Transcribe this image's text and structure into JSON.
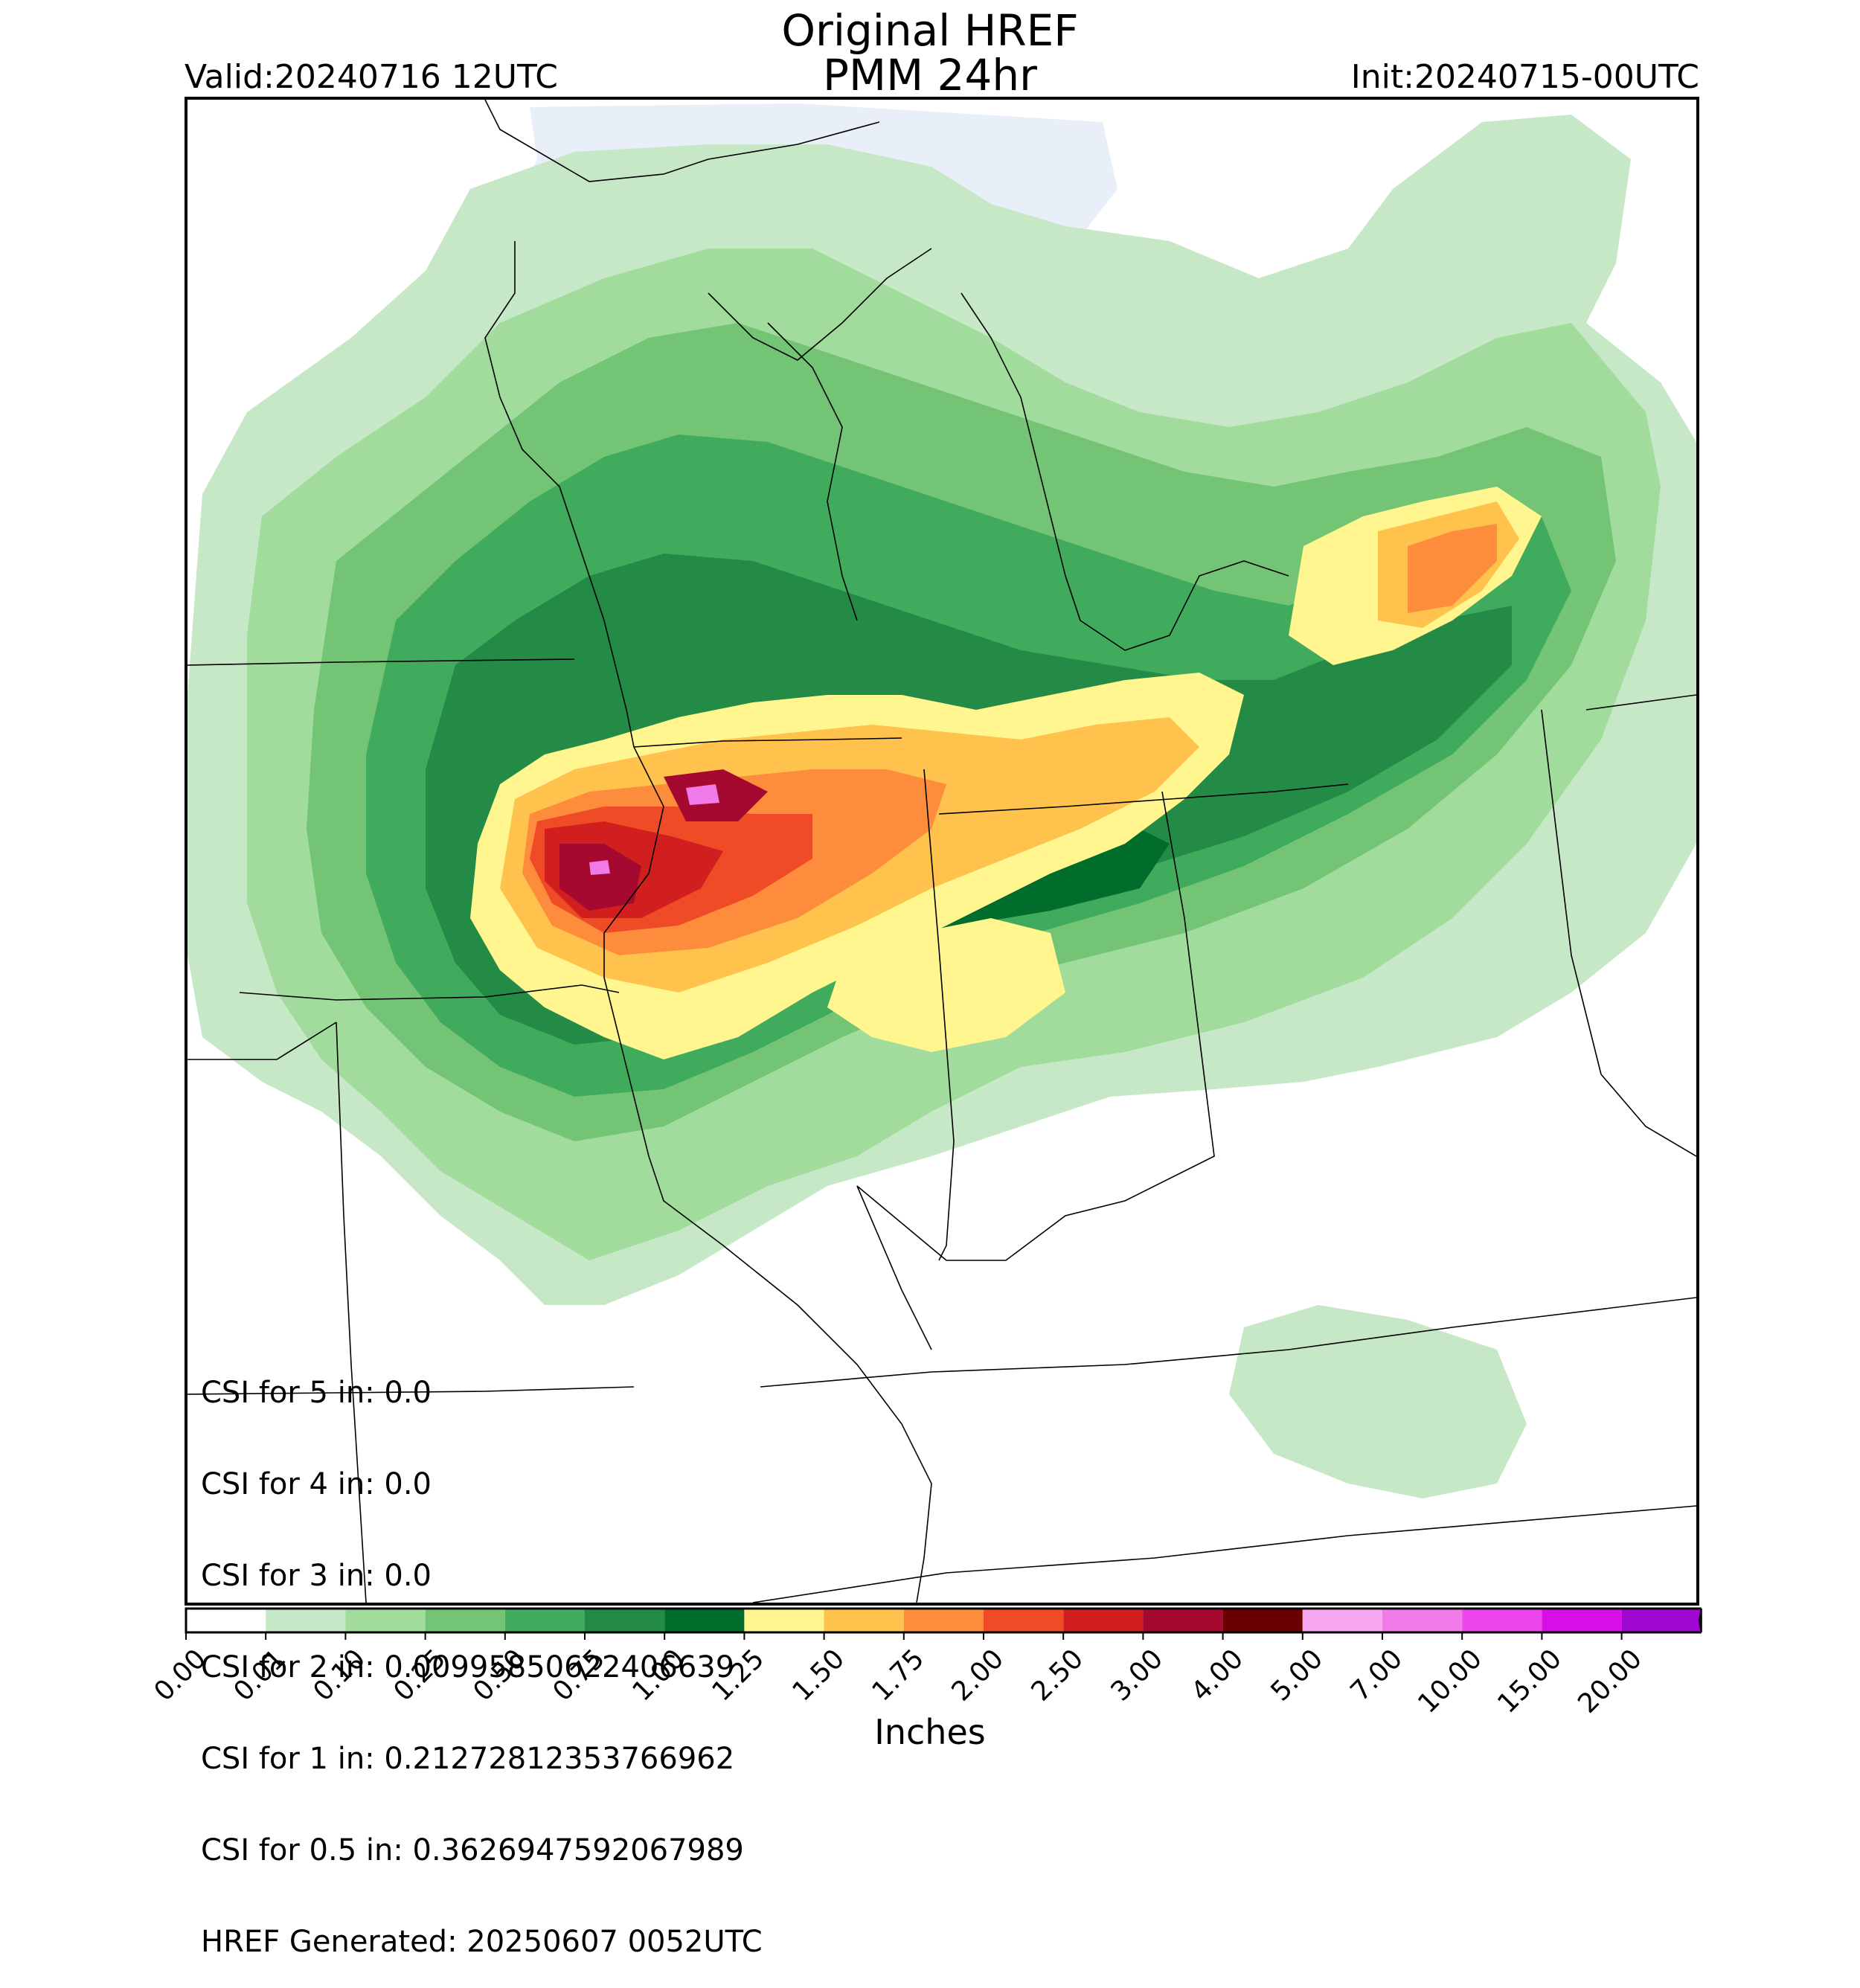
{
  "header": {
    "title_line1": "Original HREF",
    "title_line2": "PMM 24hr",
    "valid": "Valid:20240716 12UTC",
    "init": "Init:20240715-00UTC"
  },
  "stats": {
    "lines": [
      "CSI for 5 in: 0.0",
      "CSI for 4 in: 0.0",
      "CSI for 3 in: 0.0",
      "CSI for 2 in: 0.00995850622406639",
      "CSI for 1 in: 0.21272812353766962",
      "CSI for 0.5 in: 0.3626947592067989",
      "HREF Generated: 20250607 0052UTC"
    ]
  },
  "colorbar": {
    "label": "Inches",
    "ticks": [
      "0.00",
      "0.01",
      "0.10",
      "0.25",
      "0.50",
      "0.75",
      "1.00",
      "1.25",
      "1.50",
      "1.75",
      "2.00",
      "2.50",
      "3.00",
      "4.00",
      "5.00",
      "7.00",
      "10.00",
      "15.00",
      "20.00"
    ],
    "colors": [
      "#ffffff",
      "#c7e8c7",
      "#a1dc9c",
      "#74c476",
      "#41ab5d",
      "#238b45",
      "#006d2c",
      "#fff68f",
      "#ffc34d",
      "#fd8d3c",
      "#f04b27",
      "#d11f1f",
      "#a6092f",
      "#6b0000",
      "#f7a8f0",
      "#f07ae8",
      "#ed45ec",
      "#d90fe8",
      "#9f07d1",
      "#5a0090"
    ],
    "extend_color": "#5a0090"
  },
  "map": {
    "lake_color": "#e9eff8",
    "precip_colors": {
      "light": "#c7e8c7",
      "lightgreen": "#a1dc9c",
      "green": "#74c476",
      "midgreen": "#41ab5d",
      "darkgreen": "#238b45",
      "deepgreen": "#006d2c",
      "yellow": "#fff68f",
      "gold": "#ffc34d",
      "orange": "#fd8d3c",
      "red": "#f04b27",
      "crimson": "#d11f1f",
      "maroon": "#a6092f",
      "pink": "#f07ae8"
    }
  }
}
